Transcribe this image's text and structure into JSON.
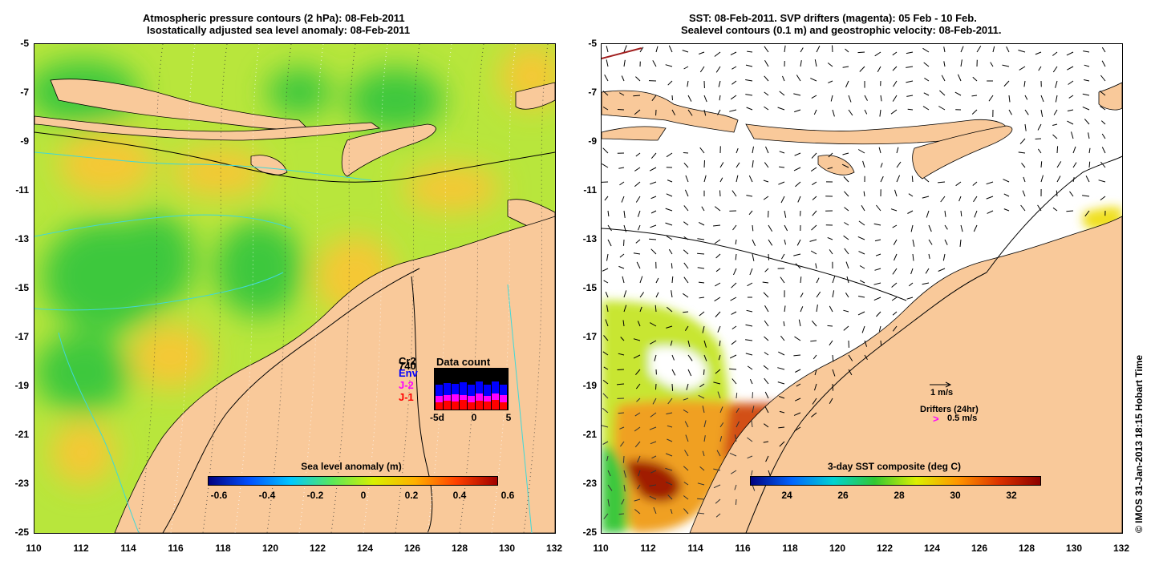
{
  "left": {
    "title_line1": "Atmospheric pressure contours (2 hPa): 08-Feb-2011",
    "title_line2": "Isostatically adjusted sea level anomaly: 08-Feb-2011",
    "colorbar": {
      "label": "Sea level anomaly (m)",
      "ticks": [
        "-0.6",
        "-0.4",
        "-0.2",
        "0",
        "0.2",
        "0.4",
        "0.6"
      ],
      "colors": [
        "#00007f",
        "#0050ff",
        "#00c8ff",
        "#5ae85a",
        "#d8f000",
        "#ffb000",
        "#ff4000",
        "#a00000"
      ]
    },
    "inset": {
      "title": "Data count",
      "missions": [
        "Cr2",
        "740",
        "Env",
        "J-2",
        "J-1"
      ],
      "mission_colors": [
        "#000000",
        "#000000",
        "#0000ff",
        "#ff00ff",
        "#ff0000"
      ],
      "xticks": [
        "-5d",
        "0",
        "5"
      ]
    },
    "colors": {
      "land": "#f9c99a",
      "sea_base": "#b8e63c",
      "low": "#3cc83c",
      "high": "#f5c836"
    }
  },
  "right": {
    "title_line1": "SST: 08-Feb-2011. SVP drifters (magenta): 05 Feb - 10 Feb.",
    "title_line2": "Sealevel contours (0.1 m) and geostrophic velocity: 08-Feb-2011.",
    "colorbar": {
      "label": "3-day SST composite (deg C)",
      "ticks": [
        "24",
        "26",
        "28",
        "30",
        "32"
      ],
      "colors": [
        "#00007f",
        "#0064ff",
        "#00d2d2",
        "#32c832",
        "#dcf000",
        "#ff9600",
        "#dc3200",
        "#8c0000"
      ]
    },
    "legend": {
      "velocity_label": "1 m/s",
      "drifters_label": "Drifters (24hr)",
      "drifter_speed": "0.5 m/s",
      "drifter_symbol": ">"
    }
  },
  "axes": {
    "x_ticks": [
      "110",
      "112",
      "114",
      "116",
      "118",
      "120",
      "122",
      "124",
      "126",
      "128",
      "130",
      "132"
    ],
    "y_ticks": [
      "-5",
      "-7",
      "-9",
      "-11",
      "-13",
      "-15",
      "-17",
      "-19",
      "-21",
      "-23",
      "-25"
    ]
  },
  "credit": "© IMOS 31-Jan-2013 18:15 Hobart Time"
}
